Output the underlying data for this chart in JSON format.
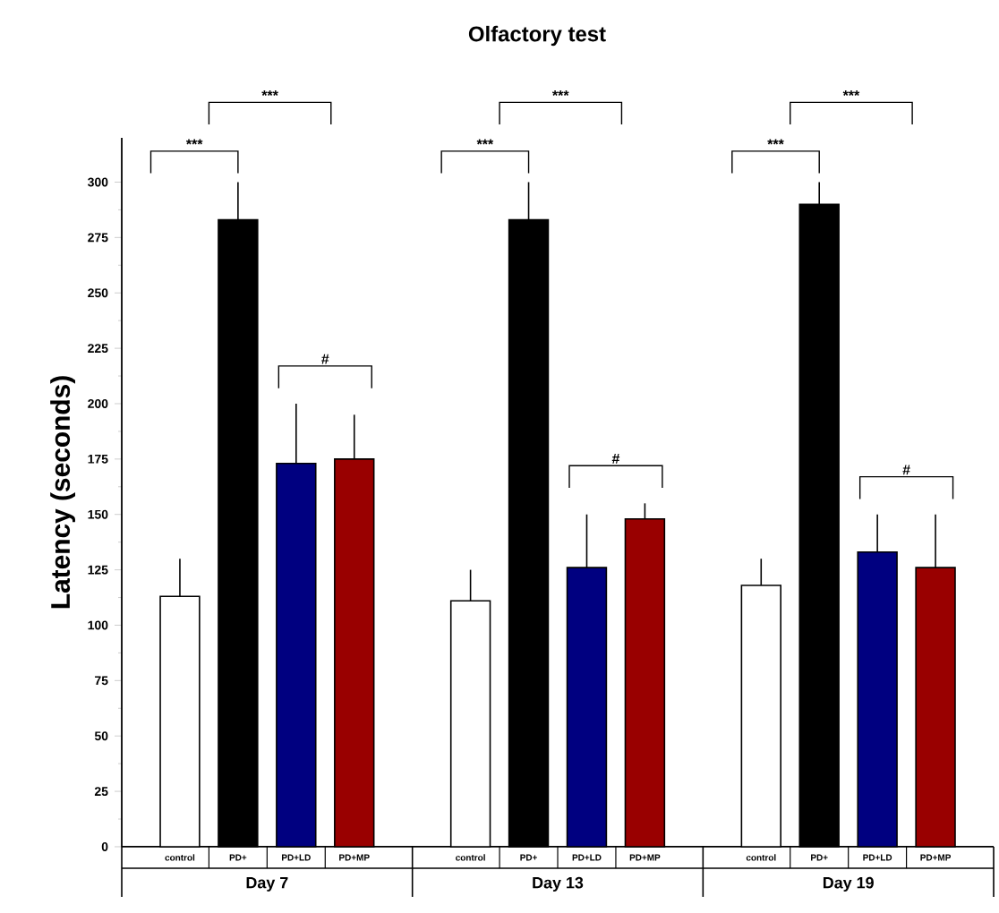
{
  "chart_data": {
    "type": "bar",
    "title": "Olfactory test",
    "ylabel": "Latency (seconds)",
    "categories": [
      "Day 7",
      "Day 13",
      "Day 19"
    ],
    "series": [
      {
        "name": "control",
        "color": "#ffffff",
        "values": [
          113,
          111,
          118
        ],
        "errors": [
          [
            113,
            130
          ],
          [
            111,
            125
          ],
          [
            118,
            130
          ]
        ]
      },
      {
        "name": "PD+",
        "color": "#000000",
        "values": [
          283,
          283,
          290
        ],
        "errors": [
          [
            283,
            300
          ],
          [
            283,
            300
          ],
          [
            290,
            300
          ]
        ]
      },
      {
        "name": "PD+LD",
        "color": "#000080",
        "values": [
          173,
          126,
          133
        ],
        "errors": [
          [
            173,
            200
          ],
          [
            126,
            150
          ],
          [
            133,
            150
          ]
        ]
      },
      {
        "name": "PD+MP",
        "color": "#990000",
        "values": [
          175,
          148,
          126
        ],
        "errors": [
          [
            175,
            195
          ],
          [
            148,
            155
          ],
          [
            126,
            150
          ]
        ]
      }
    ],
    "ylim": [
      0,
      320
    ],
    "yticks": [
      0,
      25,
      50,
      75,
      100,
      125,
      150,
      175,
      200,
      225,
      250,
      275,
      300
    ],
    "annotations": [
      "***",
      "***",
      "#",
      "***",
      "***",
      "#",
      "***",
      "***",
      "#"
    ]
  }
}
